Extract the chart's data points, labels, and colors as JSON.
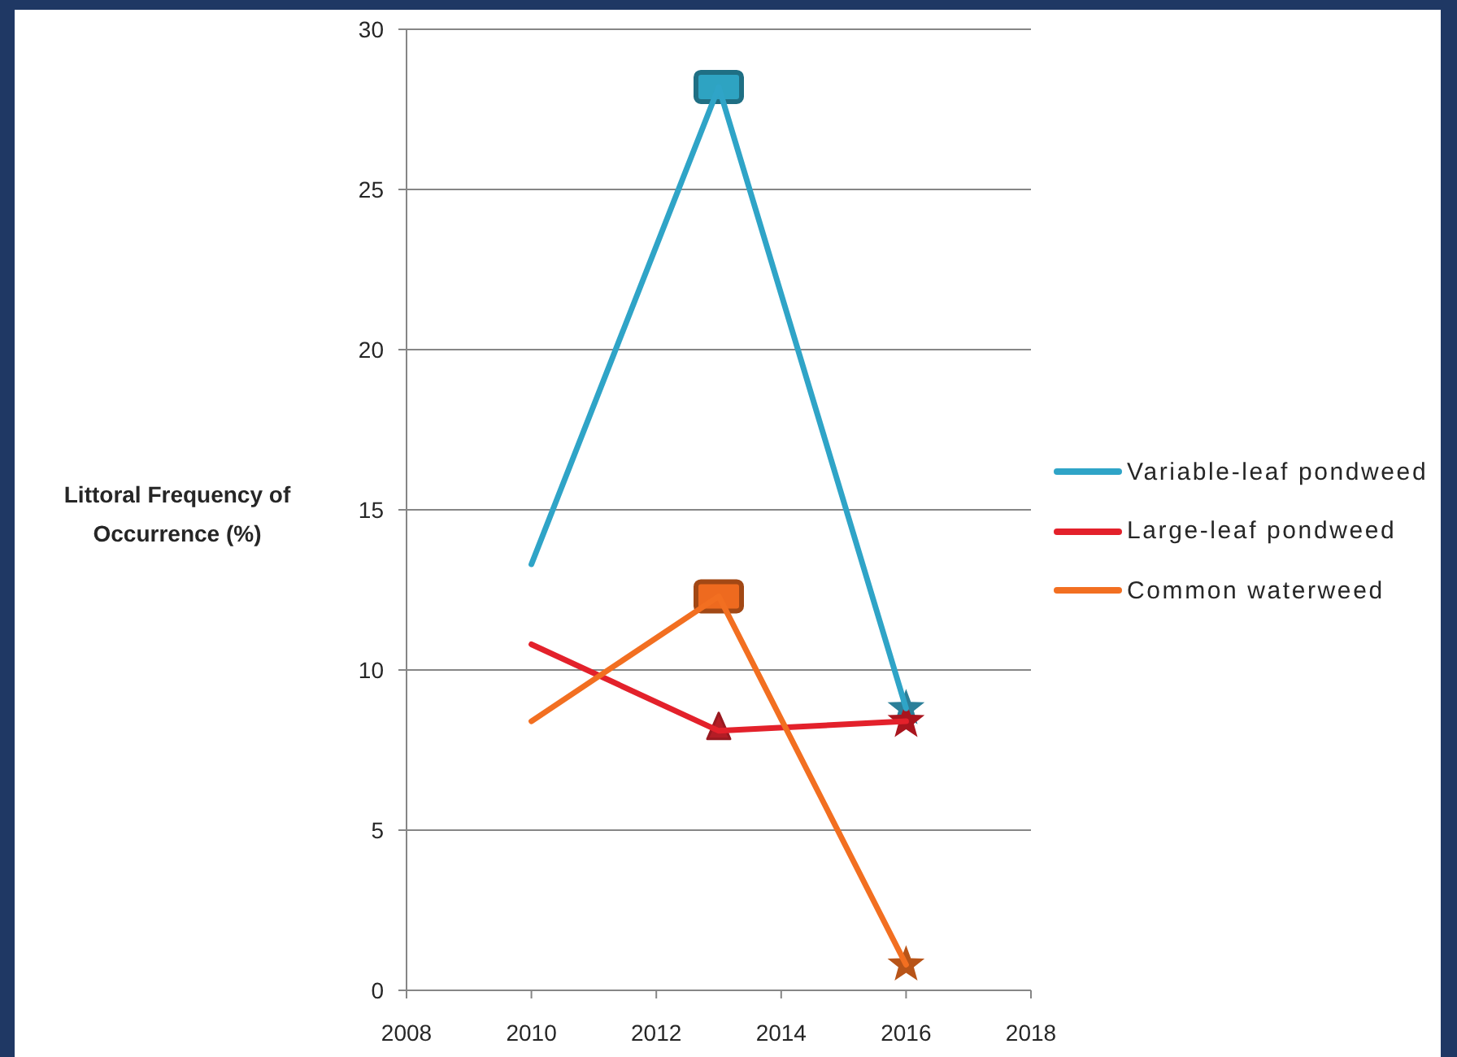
{
  "chart_data": {
    "type": "line",
    "ylabel": "Littoral Frequency of Occurrence (%)",
    "x": [
      2010,
      2013,
      2016
    ],
    "series": [
      {
        "name": "Variable-leaf pondweed",
        "color": "#2fa4c7",
        "values": [
          13.3,
          28.2,
          8.8
        ],
        "marker": "none"
      },
      {
        "name": "Large-leaf pondweed",
        "color": "#e3212b",
        "values": [
          10.8,
          8.1,
          8.4
        ],
        "marker": "none"
      },
      {
        "name": "Common waterweed",
        "color": "#f26f21",
        "values": [
          8.4,
          12.3,
          0.8
        ],
        "marker": "none"
      },
      {
        "type": "scatter",
        "color": "#2ea3c2",
        "values": [
          null,
          28.2,
          null
        ],
        "marker": "square"
      },
      {
        "type": "scatter",
        "color": "#2b7f99",
        "values": [
          null,
          null,
          8.8
        ],
        "marker": "star"
      },
      {
        "type": "scatter",
        "color": "#b41d26",
        "values": [
          null,
          8.1,
          null
        ],
        "marker": "triangle"
      },
      {
        "type": "scatter",
        "color": "#a9151e",
        "values": [
          null,
          null,
          8.4
        ],
        "marker": "star"
      },
      {
        "type": "scatter",
        "color": "#ee6a1f",
        "values": [
          null,
          12.3,
          null
        ],
        "marker": "square"
      },
      {
        "type": "scatter",
        "color": "#b85418",
        "values": [
          null,
          null,
          0.8
        ],
        "marker": "star"
      }
    ],
    "xlim": [
      2008,
      2018
    ],
    "xticks": [
      2008,
      2010,
      2012,
      2014,
      2016,
      2018
    ],
    "ylim": [
      0,
      30
    ],
    "yticks": [
      0,
      5,
      10,
      15,
      20,
      25,
      30
    ],
    "grid": "y",
    "legend": "right"
  }
}
